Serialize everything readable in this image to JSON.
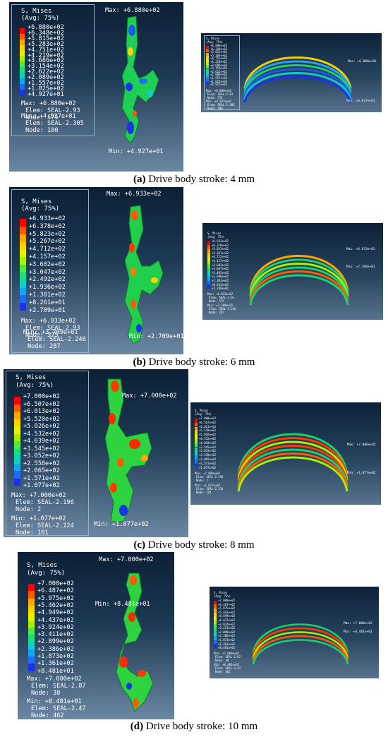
{
  "legend_title_1": "S, Mises",
  "legend_title_2": "(Avg: 75%)",
  "max_label": "Max:",
  "min_label": "Min:",
  "colors": [
    "#ff0000",
    "#ff5a00",
    "#ffa600",
    "#ffd200",
    "#e8f000",
    "#a8f000",
    "#4fe84a",
    "#15e07a",
    "#0fd0c4",
    "#12a6ee",
    "#1c6cf5",
    "#1a32e8",
    "#1010c8"
  ],
  "panels": [
    {
      "caption_label": "(a)",
      "caption_text": " Drive body stroke: 4 mm",
      "legend_values": [
        "+6.880e+02",
        "+6.348e+02",
        "+5.815e+02",
        "+5.283e+02",
        "+4.751e+02",
        "+4.219e+02",
        "+3.686e+02",
        "+3.154e+02",
        "+2.622e+02",
        "+2.089e+02",
        "+1.557e+02",
        "+1.025e+02",
        "+4.927e+01"
      ],
      "max_line": "Max: +6.880e+02",
      "max_elem": "Elem: SEAL-2.93",
      "max_node": "Node: 575",
      "min_line": "Min: +4.927e+01",
      "min_elem": "Elem: SEAL-2.305",
      "min_node": "Node: 100",
      "max_ann": "Max: +6.880e+02",
      "min_ann": "Min: +4.927e+01",
      "right_max": "Max: +6.880e+02",
      "right_min": "Min: +4.927e+01"
    },
    {
      "caption_label": "(b)",
      "caption_text": " Drive body stroke: 6 mm",
      "legend_values": [
        "+6.933e+02",
        "+6.378e+02",
        "+5.823e+02",
        "+5.267e+02",
        "+4.712e+02",
        "+4.157e+02",
        "+3.602e+02",
        "+3.047e+02",
        "+2.492e+02",
        "+1.936e+02",
        "+1.381e+02",
        "+8.261e+01",
        "+2.709e+01"
      ],
      "max_line": "Max: +6.933e+02",
      "max_elem": "Elem: SEAL-2.93",
      "max_node": "Node: 575",
      "min_line": "Min: +2.709e+01",
      "min_elem": "Elem: SEAL-2.246",
      "min_node": "Node: 287",
      "max_ann": "Max: +6.933e+02",
      "min_ann": "Min: +2.709e+01",
      "right_max": "Max: +6.933e+02",
      "right_min": "Min: +2.709e+01"
    },
    {
      "caption_label": "(c)",
      "caption_text": " Drive body stroke: 8 mm",
      "legend_values": [
        "+7.000e+02",
        "+6.507e+02",
        "+6.013e+02",
        "+5.520e+02",
        "+5.026e+02",
        "+4.532e+02",
        "+4.039e+02",
        "+3.545e+02",
        "+3.052e+02",
        "+2.558e+02",
        "+2.065e+02",
        "+1.571e+02",
        "+1.077e+02"
      ],
      "max_line": "Max: +7.000e+02",
      "max_elem": "Elem: SEAL-2.196",
      "max_node": "Node: 2",
      "min_line": "Min: +1.077e+02",
      "min_elem": "Elem: SEAL-2.124",
      "min_node": "Node: 101",
      "max_ann": "Max: +7.000e+02",
      "min_ann": "Min: +1.077e+02",
      "right_max": "Max: +7.000e+02",
      "right_min": "Min: +1.077e+02"
    },
    {
      "caption_label": "(d)",
      "caption_text": " Drive body stroke: 10 mm",
      "legend_values": [
        "+7.000e+02",
        "+6.487e+02",
        "+5.975e+02",
        "+5.462e+02",
        "+4.949e+02",
        "+4.437e+02",
        "+3.924e+02",
        "+3.411e+02",
        "+2.899e+02",
        "+2.386e+02",
        "+1.873e+02",
        "+1.361e+02",
        "+8.481e+01"
      ],
      "max_line": "Max: +7.000e+02",
      "max_elem": "Elem: SEAL-2.87",
      "max_node": "Node: 38",
      "min_line": "Min: +8.481e+01",
      "min_elem": "Elem: SEAL-2.47",
      "min_node": "Node: 462",
      "max_ann": "Max: +7.000e+02",
      "min_ann": "Min: +8.481e+01",
      "right_max": "Max: +7.000e+02",
      "right_min": "Min: +8.481e+01"
    }
  ]
}
